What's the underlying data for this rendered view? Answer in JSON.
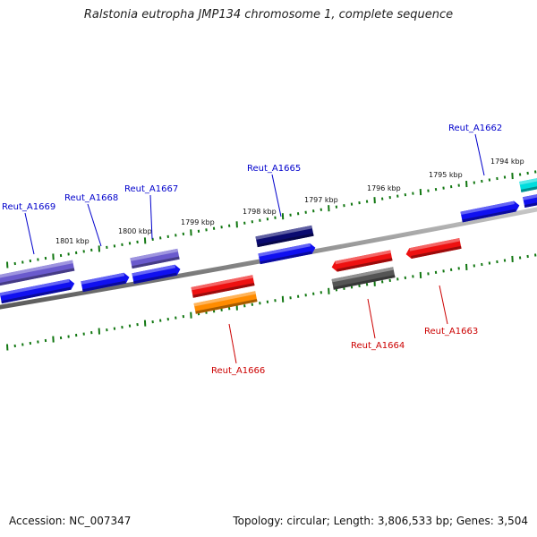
{
  "title": "Ralstonia eutropha JMP134 chromosome 1, complete sequence",
  "footer": {
    "accession": "Accession: NC_007347",
    "topology": "Topology: circular; Length: 3,806,533 bp; Genes: 3,504"
  },
  "scale_labels": [
    "1801 kbp",
    "1800 kbp",
    "1799 kbp",
    "1798 kbp",
    "1797 kbp",
    "1796 kbp",
    "1795 kbp",
    "1794 kbp"
  ],
  "gene_labels": {
    "forward": [
      "Reut_A1669",
      "Reut_A1668",
      "Reut_A1667",
      "Reut_A1665",
      "Reut_A1662"
    ],
    "reverse": [
      "Reut_A1666",
      "Reut_A1664",
      "Reut_A1663"
    ]
  },
  "colors": {
    "forward_label": "#0000cc",
    "reverse_label": "#cc0000",
    "ticks": "#117711",
    "backbone": "#8a8a8a",
    "blue": "#1010f0",
    "slate": "#6a5acd",
    "navy": "#0a0a70",
    "cyan": "#00dddd",
    "red": "#ee1111",
    "orange": "#ff8c00",
    "gray": "#555555"
  }
}
